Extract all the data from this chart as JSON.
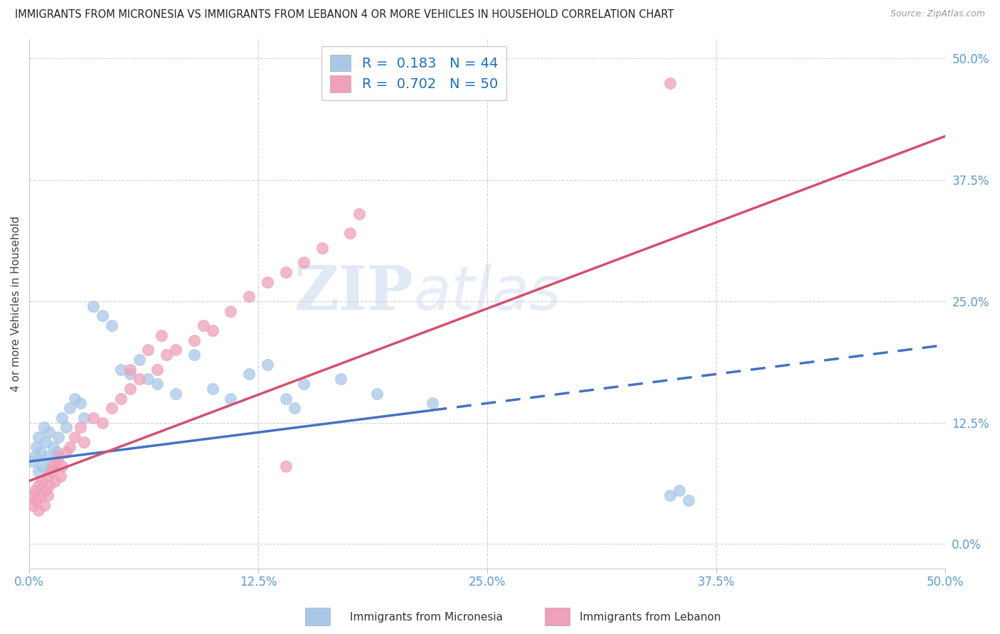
{
  "title": "IMMIGRANTS FROM MICRONESIA VS IMMIGRANTS FROM LEBANON 4 OR MORE VEHICLES IN HOUSEHOLD CORRELATION CHART",
  "source": "Source: ZipAtlas.com",
  "ylabel": "4 or more Vehicles in Household",
  "legend_micronesia": "Immigrants from Micronesia",
  "legend_lebanon": "Immigrants from Lebanon",
  "R_micronesia": 0.183,
  "N_micronesia": 44,
  "R_lebanon": 0.702,
  "N_lebanon": 50,
  "color_micronesia": "#a8c8e8",
  "color_lebanon": "#f0a0b8",
  "trendline_micronesia": "#4472c4",
  "trendline_lebanon": "#d45070",
  "xmin": 0.0,
  "xmax": 50.0,
  "ymin": -2.5,
  "ymax": 52.0,
  "yticks": [
    0.0,
    12.5,
    25.0,
    37.5,
    50.0
  ],
  "xticks": [
    0.0,
    12.5,
    25.0,
    37.5,
    50.0
  ],
  "watermark_zip": "ZIP",
  "watermark_atlas": "atlas",
  "background_color": "#ffffff",
  "mic_solid_end_x": 22.0,
  "leb_line_start_x": 0.0,
  "leb_line_end_x": 50.0,
  "mic_line_y0": 8.5,
  "mic_line_y50": 20.5,
  "leb_line_y0": 6.5,
  "leb_line_y50": 42.0,
  "micronesia_x": [
    0.2,
    0.3,
    0.4,
    0.5,
    0.5,
    0.6,
    0.7,
    0.8,
    0.9,
    1.0,
    1.1,
    1.2,
    1.3,
    1.5,
    1.6,
    1.8,
    2.0,
    2.2,
    2.5,
    2.8,
    3.0,
    3.5,
    4.0,
    4.5,
    5.0,
    5.5,
    6.0,
    6.5,
    7.0,
    8.0,
    9.0,
    10.0,
    11.0,
    12.0,
    13.0,
    14.0,
    14.5,
    15.0,
    17.0,
    19.0,
    22.0,
    35.0,
    35.5,
    36.0
  ],
  "micronesia_y": [
    8.5,
    9.0,
    10.0,
    7.5,
    11.0,
    9.5,
    8.0,
    12.0,
    10.5,
    9.0,
    11.5,
    8.0,
    10.0,
    9.5,
    11.0,
    13.0,
    12.0,
    14.0,
    15.0,
    14.5,
    13.0,
    24.5,
    23.5,
    22.5,
    18.0,
    17.5,
    19.0,
    17.0,
    16.5,
    15.5,
    19.5,
    16.0,
    15.0,
    17.5,
    18.5,
    15.0,
    14.0,
    16.5,
    17.0,
    15.5,
    14.5,
    5.0,
    5.5,
    4.5
  ],
  "lebanon_x": [
    0.1,
    0.2,
    0.3,
    0.4,
    0.5,
    0.5,
    0.6,
    0.7,
    0.8,
    0.9,
    1.0,
    1.0,
    1.1,
    1.2,
    1.3,
    1.4,
    1.5,
    1.6,
    1.7,
    1.8,
    2.0,
    2.2,
    2.5,
    2.8,
    3.0,
    3.5,
    4.0,
    4.5,
    5.0,
    5.5,
    6.0,
    7.0,
    7.5,
    8.0,
    9.0,
    10.0,
    11.0,
    12.0,
    13.0,
    14.0,
    14.0,
    15.0,
    16.0,
    17.5,
    18.0,
    5.5,
    6.5,
    7.2,
    35.0,
    9.5
  ],
  "lebanon_y": [
    5.0,
    4.0,
    5.5,
    4.5,
    6.0,
    3.5,
    5.0,
    6.5,
    4.0,
    5.5,
    7.0,
    5.0,
    6.0,
    7.5,
    8.0,
    6.5,
    8.5,
    9.0,
    7.0,
    8.0,
    9.5,
    10.0,
    11.0,
    12.0,
    10.5,
    13.0,
    12.5,
    14.0,
    15.0,
    16.0,
    17.0,
    18.0,
    19.5,
    20.0,
    21.0,
    22.0,
    24.0,
    25.5,
    27.0,
    28.0,
    8.0,
    29.0,
    30.5,
    32.0,
    34.0,
    18.0,
    20.0,
    21.5,
    47.5,
    22.5
  ]
}
